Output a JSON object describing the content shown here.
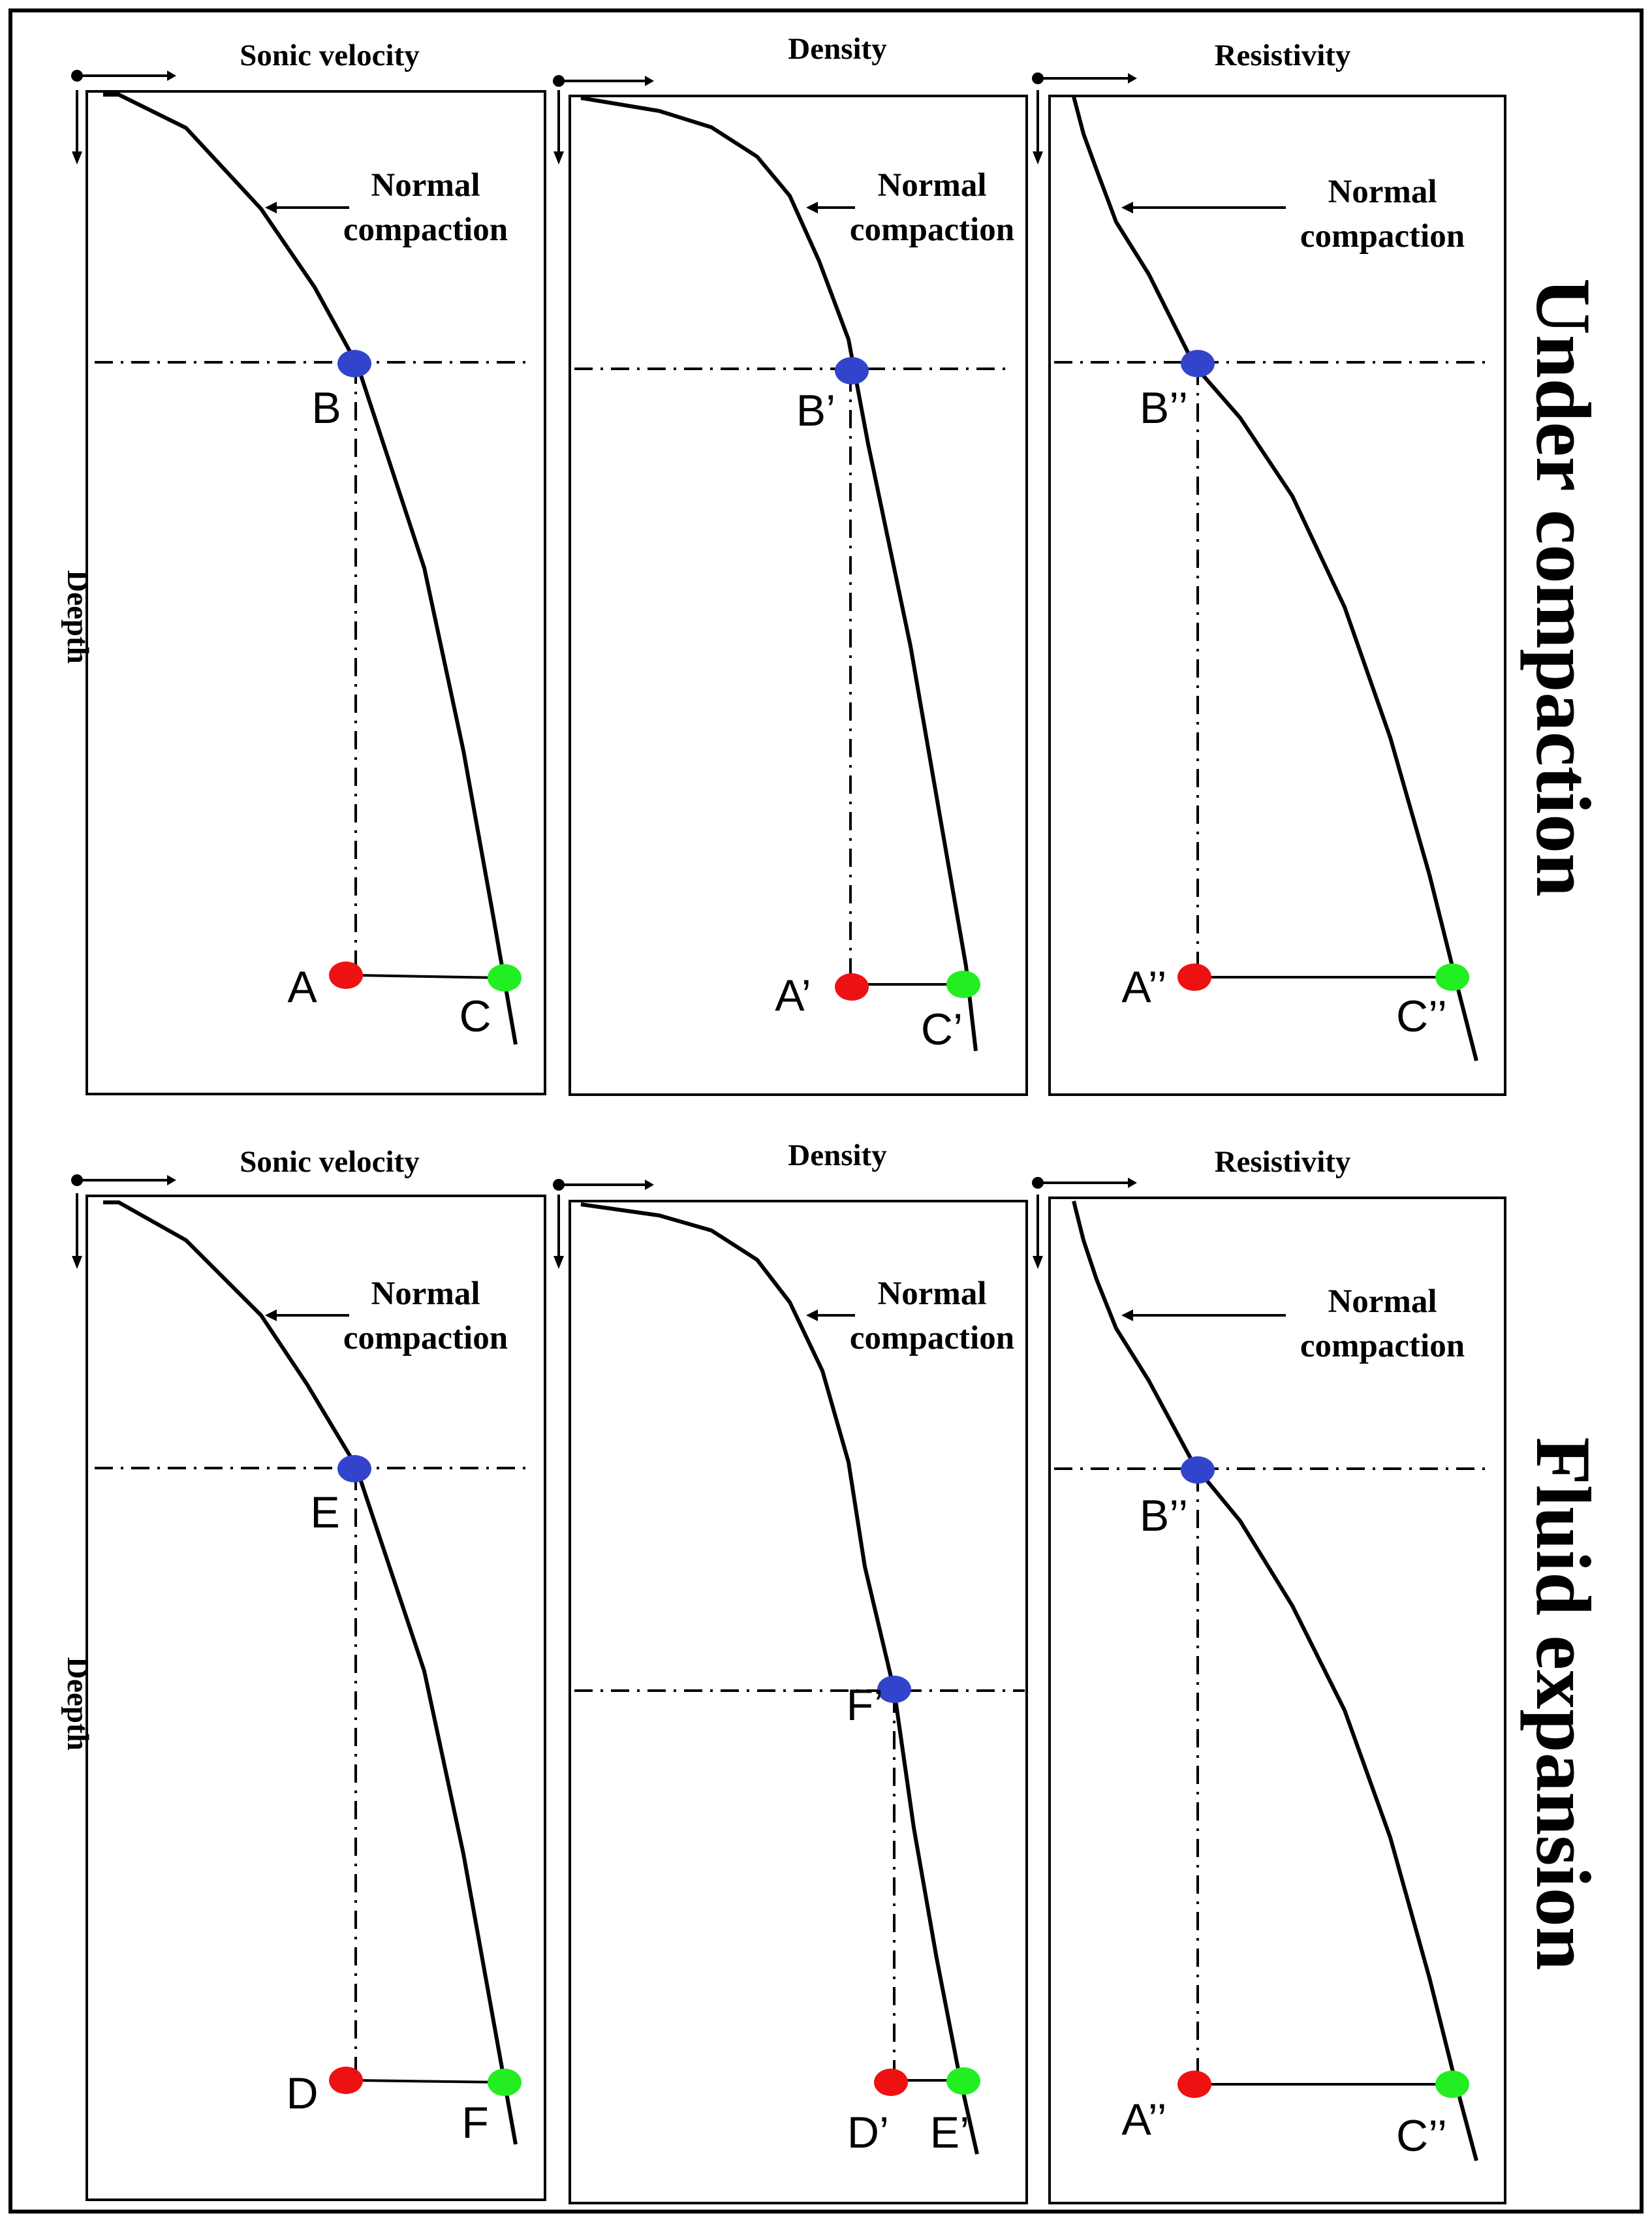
{
  "sections": [
    {
      "label": "Under compaction",
      "depth_label": "Deepth",
      "panels": [
        {
          "title": "Sonic velocity",
          "annotation_line1": "Normal",
          "annotation_line2": "compaction",
          "marker_top": "B",
          "marker_bottom_left": "A",
          "marker_bottom_right": "C"
        },
        {
          "title": "Density",
          "annotation_line1": "Normal",
          "annotation_line2": "compaction",
          "marker_top": "B’",
          "marker_bottom_left": "A’",
          "marker_bottom_right": "C’"
        },
        {
          "title": "Resistivity",
          "annotation_line1": "Normal",
          "annotation_line2": "compaction",
          "marker_top": "B’’",
          "marker_bottom_left": "A’’",
          "marker_bottom_right": "C’’"
        }
      ]
    },
    {
      "label": "Fluid expansion",
      "depth_label": "Deepth",
      "panels": [
        {
          "title": "Sonic velocity",
          "annotation_line1": "Normal",
          "annotation_line2": "compaction",
          "marker_top": "E",
          "marker_bottom_left": "D",
          "marker_bottom_right": "F"
        },
        {
          "title": "Density",
          "annotation_line1": "Normal",
          "annotation_line2": "compaction",
          "marker_top": "F’",
          "marker_bottom_left": "D’",
          "marker_bottom_right": "E’"
        },
        {
          "title": "Resistivity",
          "annotation_line1": "Normal",
          "annotation_line2": "compaction",
          "marker_top": "B’’",
          "marker_bottom_left": "A’’",
          "marker_bottom_right": "C’’"
        }
      ]
    }
  ],
  "colors": {
    "marker_top": "#3344cc",
    "marker_bottom_left": "#ee1111",
    "marker_bottom_right": "#22ee22"
  }
}
